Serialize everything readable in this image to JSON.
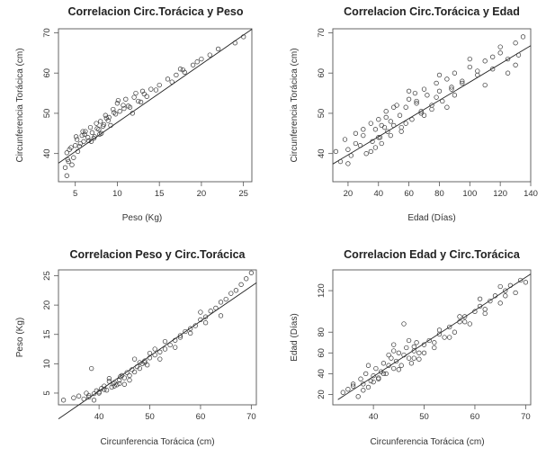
{
  "chart_data": [
    {
      "type": "scatter",
      "title": "Correlacion Circ.Torácica y Peso",
      "xlabel": "Peso (Kg)",
      "ylabel": "Circunferencia Torácica (cm)",
      "xlim": [
        3,
        26
      ],
      "ylim": [
        33,
        71
      ],
      "xticks": [
        "5",
        "10",
        "15",
        "20",
        "25"
      ],
      "yticks": [
        "40",
        "50",
        "60",
        "70"
      ],
      "regression": {
        "x": [
          3,
          26
        ],
        "y": [
          37.6,
          70.9
        ]
      },
      "x": [
        3.8,
        4.0,
        4.2,
        4.5,
        4.8,
        5.0,
        5.2,
        5.5,
        5.8,
        6.0,
        6.2,
        6.5,
        6.8,
        7.0,
        7.2,
        7.5,
        7.8,
        8.0,
        8.3,
        8.6,
        8.9,
        9.2,
        9.5,
        9.8,
        10.0,
        10.3,
        10.7,
        11.0,
        11.5,
        12.0,
        12.5,
        13.0,
        13.5,
        14.0,
        15.0,
        16.0,
        17.0,
        17.5,
        18.0,
        19.0,
        20.0,
        21.0,
        22.0,
        24.0,
        25.0,
        4.1,
        5.3,
        6.1,
        7.3,
        8.4,
        9.6,
        10.8,
        12.2,
        14.6,
        17.8,
        4.0,
        4.6,
        5.6,
        6.6,
        7.6,
        8.1,
        9.0,
        10.1,
        11.3,
        12.8,
        5.9,
        6.9,
        8.7,
        13.2,
        19.5,
        4.3,
        5.1,
        7.9,
        11.8,
        16.5
      ],
      "y": [
        36.5,
        40.2,
        38.0,
        41.5,
        39.0,
        42.0,
        43.5,
        41.8,
        44.5,
        43.0,
        45.5,
        44.0,
        46.5,
        45.2,
        43.8,
        47.5,
        46.0,
        48.0,
        46.8,
        49.5,
        48.2,
        47.0,
        51.0,
        49.8,
        52.5,
        50.5,
        52.0,
        53.5,
        51.5,
        54.0,
        53.0,
        55.5,
        54.2,
        56.0,
        57.0,
        58.5,
        59.5,
        61.0,
        60.2,
        62.0,
        63.5,
        64.5,
        66.0,
        67.5,
        69.0,
        38.5,
        40.5,
        44.8,
        44.2,
        47.2,
        50.2,
        51.2,
        55.0,
        55.8,
        60.8,
        34.5,
        37.2,
        42.5,
        43.2,
        46.2,
        45.0,
        49.0,
        53.2,
        51.8,
        52.8,
        45.5,
        43.0,
        48.8,
        54.8,
        62.8,
        41.0,
        44.2,
        44.8,
        50.0,
        57.8
      ],
      "point_color": "#333333"
    },
    {
      "type": "scatter",
      "title": "Correlacion Circ.Torácica y Edad",
      "xlabel": "Edad (Días)",
      "ylabel": "Circunferencia Torácica (cm)",
      "xlim": [
        10,
        140
      ],
      "ylim": [
        33,
        71
      ],
      "xticks": [
        "20",
        "40",
        "60",
        "80",
        "100",
        "120",
        "140"
      ],
      "yticks": [
        "40",
        "50",
        "60",
        "70"
      ],
      "regression": {
        "x": [
          10,
          140
        ],
        "y": [
          37.4,
          66.8
        ]
      },
      "x": [
        12,
        15,
        18,
        20,
        22,
        25,
        28,
        30,
        32,
        35,
        36,
        38,
        40,
        41,
        42,
        44,
        45,
        46,
        48,
        50,
        52,
        54,
        55,
        58,
        60,
        62,
        64,
        65,
        68,
        70,
        72,
        75,
        78,
        80,
        82,
        85,
        88,
        90,
        95,
        100,
        105,
        110,
        115,
        120,
        125,
        130,
        132,
        135,
        20,
        30,
        40,
        50,
        60,
        70,
        80,
        90,
        100,
        110,
        120,
        130,
        25,
        35,
        45,
        55,
        65,
        75,
        85,
        95,
        105,
        115,
        125,
        38,
        42,
        48,
        58,
        68,
        78,
        88
      ],
      "y": [
        40.5,
        38.0,
        43.5,
        41.0,
        39.5,
        45.0,
        42.0,
        44.5,
        40.0,
        47.5,
        43.0,
        46.0,
        48.5,
        44.0,
        42.5,
        46.5,
        50.5,
        45.5,
        48.0,
        47.0,
        52.0,
        49.5,
        46.5,
        51.5,
        53.5,
        48.5,
        55.0,
        52.5,
        50.5,
        56.0,
        54.5,
        51.0,
        57.5,
        55.5,
        53.0,
        58.5,
        56.5,
        60.0,
        58.0,
        61.5,
        59.5,
        63.0,
        61.0,
        65.0,
        63.5,
        67.5,
        64.5,
        69.0,
        37.5,
        46.0,
        44.0,
        51.5,
        55.5,
        49.5,
        59.5,
        54.5,
        63.5,
        57.0,
        66.5,
        62.0,
        42.5,
        40.5,
        49.0,
        45.5,
        53.0,
        52.0,
        51.5,
        57.5,
        60.5,
        64.0,
        60.0,
        41.5,
        47.0,
        44.5,
        47.5,
        50.0,
        54.0,
        56.0
      ],
      "point_color": "#333333"
    },
    {
      "type": "scatter",
      "title": "Correlacion Peso y Circ.Torácica",
      "xlabel": "Circunferencia Torácica (cm)",
      "ylabel": "Peso (Kg)",
      "xlim": [
        32,
        71
      ],
      "ylim": [
        3,
        26
      ],
      "xticks": [
        "40",
        "50",
        "60",
        "70"
      ],
      "yticks": [
        "5",
        "10",
        "15",
        "20",
        "25"
      ],
      "regression": {
        "x": [
          32,
          71
        ],
        "y": [
          0.6,
          23.8
        ]
      },
      "x": [
        33,
        35,
        36,
        37,
        37.5,
        38,
        38.5,
        39,
        39.5,
        40,
        40.5,
        41,
        41.5,
        42,
        42.5,
        43,
        43.5,
        44,
        44.5,
        45,
        45.5,
        46,
        46.5,
        47,
        47.5,
        48,
        48.5,
        49,
        49.5,
        50,
        51,
        52,
        53,
        54,
        55,
        56,
        57,
        58,
        59,
        60,
        61,
        62,
        63,
        64,
        65,
        66,
        67,
        68,
        69,
        70,
        38,
        41,
        42,
        44,
        46,
        48,
        50,
        52,
        55,
        58,
        61,
        64,
        39,
        43,
        45,
        47,
        49,
        51,
        53,
        56,
        60,
        40,
        42.8,
        44.2
      ],
      "y": [
        3.8,
        4.2,
        4.5,
        4.0,
        5.0,
        4.6,
        9.2,
        4.9,
        5.4,
        5.0,
        5.8,
        6.2,
        5.5,
        7.5,
        6.0,
        6.8,
        6.4,
        7.2,
        8.0,
        7.6,
        8.5,
        8.0,
        9.0,
        8.6,
        9.5,
        9.2,
        10.0,
        10.5,
        9.8,
        11.0,
        11.5,
        12.0,
        12.5,
        13.2,
        14.0,
        14.5,
        15.5,
        16.0,
        16.5,
        17.5,
        18.0,
        19.0,
        19.5,
        20.5,
        21.0,
        22.0,
        22.5,
        23.5,
        24.5,
        25.5,
        4.3,
        5.6,
        7.0,
        6.6,
        7.2,
        10.2,
        11.8,
        10.8,
        12.8,
        15.2,
        17.0,
        18.2,
        3.8,
        6.2,
        6.5,
        10.8,
        10.2,
        12.5,
        13.8,
        14.8,
        18.8,
        5.2,
        6.6,
        7.8
      ],
      "point_color": "#333333"
    },
    {
      "type": "scatter",
      "title": "Correlacion Edad y Circ.Torácica",
      "xlabel": "Circunferencia Torácica (cm)",
      "ylabel": "Edad (Días)",
      "xlim": [
        32,
        71
      ],
      "ylim": [
        10,
        140
      ],
      "xticks": [
        "40",
        "50",
        "60",
        "70"
      ],
      "yticks": [
        "20",
        "40",
        "60",
        "80",
        "120"
      ],
      "regression": {
        "x": [
          33,
          71
        ],
        "y": [
          15,
          136
        ]
      },
      "x": [
        34,
        35,
        36,
        37,
        37.5,
        38,
        38.5,
        39,
        39.5,
        40,
        40.5,
        41,
        41.5,
        42,
        42.5,
        43,
        43.5,
        44,
        44.5,
        45,
        45.5,
        46,
        46.5,
        47,
        47.5,
        48,
        48.5,
        49,
        50,
        51,
        52,
        53,
        54,
        55,
        56,
        57,
        58,
        59,
        60,
        61,
        62,
        63,
        64,
        65,
        66,
        67,
        68,
        69,
        70,
        36,
        40,
        42,
        44,
        46,
        48,
        50,
        52,
        55,
        58,
        62,
        66,
        38,
        41,
        43,
        45,
        47,
        49,
        53,
        57,
        61,
        65,
        39,
        44,
        48
      ],
      "y": [
        22,
        25,
        28,
        18,
        35,
        30,
        40,
        27,
        33,
        38,
        45,
        35,
        42,
        50,
        40,
        48,
        55,
        45,
        52,
        60,
        48,
        58,
        65,
        55,
        50,
        62,
        70,
        60,
        68,
        72,
        65,
        78,
        75,
        85,
        80,
        90,
        95,
        88,
        100,
        105,
        98,
        110,
        115,
        108,
        120,
        125,
        118,
        130,
        128,
        30,
        32,
        40,
        68,
        88,
        55,
        60,
        70,
        75,
        90,
        102,
        115,
        24,
        36,
        58,
        44,
        72,
        54,
        82,
        95,
        112,
        124,
        48,
        62,
        66
      ],
      "point_color": "#333333"
    }
  ]
}
